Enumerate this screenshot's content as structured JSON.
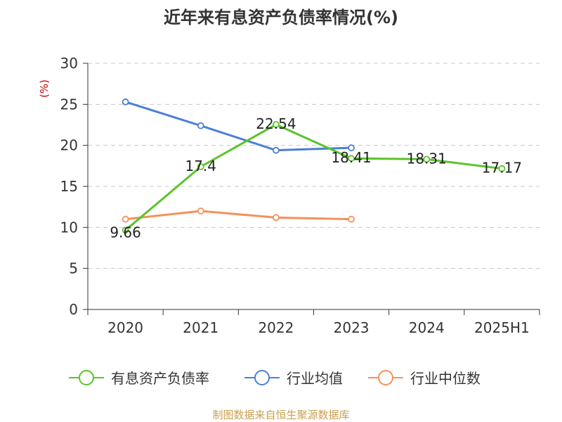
{
  "chart_data": {
    "type": "line",
    "title": "近年来有息资产负债率情况(%)",
    "ylabel": "(%)",
    "xlabel": "",
    "categories": [
      "2020",
      "2021",
      "2022",
      "2023",
      "2024",
      "2025H1"
    ],
    "ylim": [
      0,
      30
    ],
    "yticks": [
      0,
      5,
      10,
      15,
      20,
      25,
      30
    ],
    "grid": "horizontal dashed",
    "legend_position": "bottom",
    "series": [
      {
        "name": "有息资产负债率",
        "color": "#5ac42a",
        "values": [
          9.66,
          17.4,
          22.54,
          18.41,
          18.31,
          17.17
        ],
        "data_labels": [
          "9.66",
          "17.4",
          "22.54",
          "18.41",
          "18.31",
          "17.17"
        ]
      },
      {
        "name": "行业均值",
        "color": "#4a7fd8",
        "values": [
          25.3,
          22.4,
          19.4,
          19.7,
          null,
          null
        ],
        "data_labels": []
      },
      {
        "name": "行业中位数",
        "color": "#f5915a",
        "values": [
          11.0,
          12.0,
          11.2,
          11.0,
          null,
          null
        ],
        "data_labels": []
      }
    ]
  },
  "source_text": "制图数据来自恒生聚源数据库",
  "colors": {
    "title": "#333333",
    "unit": "#cc0000",
    "source": "#c8a050",
    "grid": "#c8c8c8",
    "axis": "#333333"
  }
}
